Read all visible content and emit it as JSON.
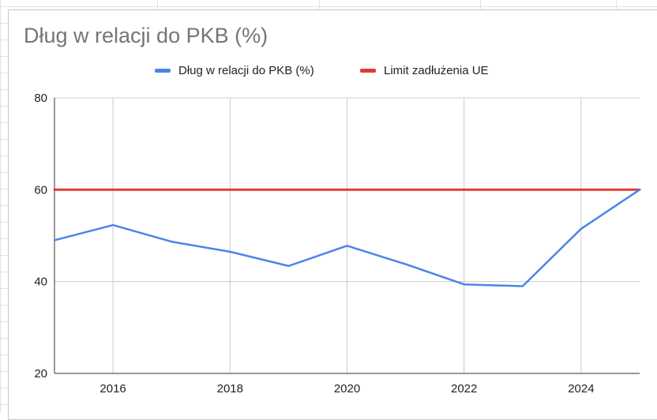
{
  "chart_data": {
    "type": "line",
    "title": "Dług w relacji do PKB (%)",
    "xlabel": "",
    "ylabel": "",
    "xlim": [
      2015,
      2025
    ],
    "ylim": [
      20,
      80
    ],
    "x_ticks": [
      2016,
      2018,
      2020,
      2022,
      2024
    ],
    "y_ticks": [
      20,
      40,
      60,
      80
    ],
    "grid": true,
    "legend_position": "top",
    "series": [
      {
        "name": "Dług w relacji do PKB (%)",
        "color": "#4a86e8",
        "x": [
          2015,
          2016,
          2017,
          2018,
          2019,
          2020,
          2021,
          2022,
          2023,
          2024,
          2025
        ],
        "y": [
          49,
          52.3,
          48.7,
          46.5,
          43.4,
          47.8,
          43.8,
          39.4,
          39,
          51.5,
          60
        ]
      },
      {
        "name": "Limit zadłużenia UE",
        "color": "#e53935",
        "x": [
          2015,
          2016,
          2017,
          2018,
          2019,
          2020,
          2021,
          2022,
          2023,
          2024,
          2025
        ],
        "y": [
          60,
          60,
          60,
          60,
          60,
          60,
          60,
          60,
          60,
          60,
          60
        ]
      }
    ]
  }
}
